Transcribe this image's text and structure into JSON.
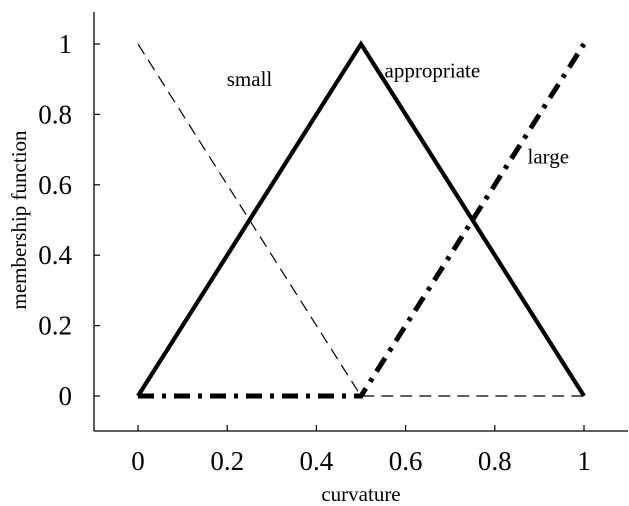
{
  "chart_data": {
    "type": "line",
    "title": "",
    "xlabel": "curvature",
    "ylabel": "membership function",
    "xlim": [
      -0.1,
      1.1
    ],
    "ylim": [
      -0.1,
      1.1
    ],
    "x_ticks": [
      0,
      0.2,
      0.4,
      0.6,
      0.8,
      1
    ],
    "x_tick_labels": [
      "0",
      "0.2",
      "0.4",
      "0.6",
      "0.8",
      "1"
    ],
    "y_ticks": [
      0,
      0.2,
      0.4,
      0.6,
      0.8,
      1
    ],
    "y_tick_labels": [
      "0",
      "0.2",
      "0.4",
      "0.6",
      "0.8",
      "1"
    ],
    "grid": false,
    "legend": "none",
    "series": [
      {
        "name": "small",
        "line_style": "dashed",
        "color": "#000000",
        "points": [
          [
            0,
            1
          ],
          [
            0.5,
            0
          ],
          [
            1,
            0
          ]
        ],
        "label_at": [
          0.25,
          0.9
        ]
      },
      {
        "name": "appropriate",
        "line_style": "solid",
        "color": "#000000",
        "points": [
          [
            0,
            0
          ],
          [
            0.5,
            1
          ],
          [
            1,
            0
          ]
        ],
        "label_at": [
          0.66,
          0.925
        ]
      },
      {
        "name": "large",
        "line_style": "dash-dot",
        "color": "#000000",
        "points": [
          [
            0,
            0
          ],
          [
            0.5,
            0
          ],
          [
            1,
            1
          ]
        ],
        "label_at": [
          0.92,
          0.68
        ]
      }
    ]
  }
}
